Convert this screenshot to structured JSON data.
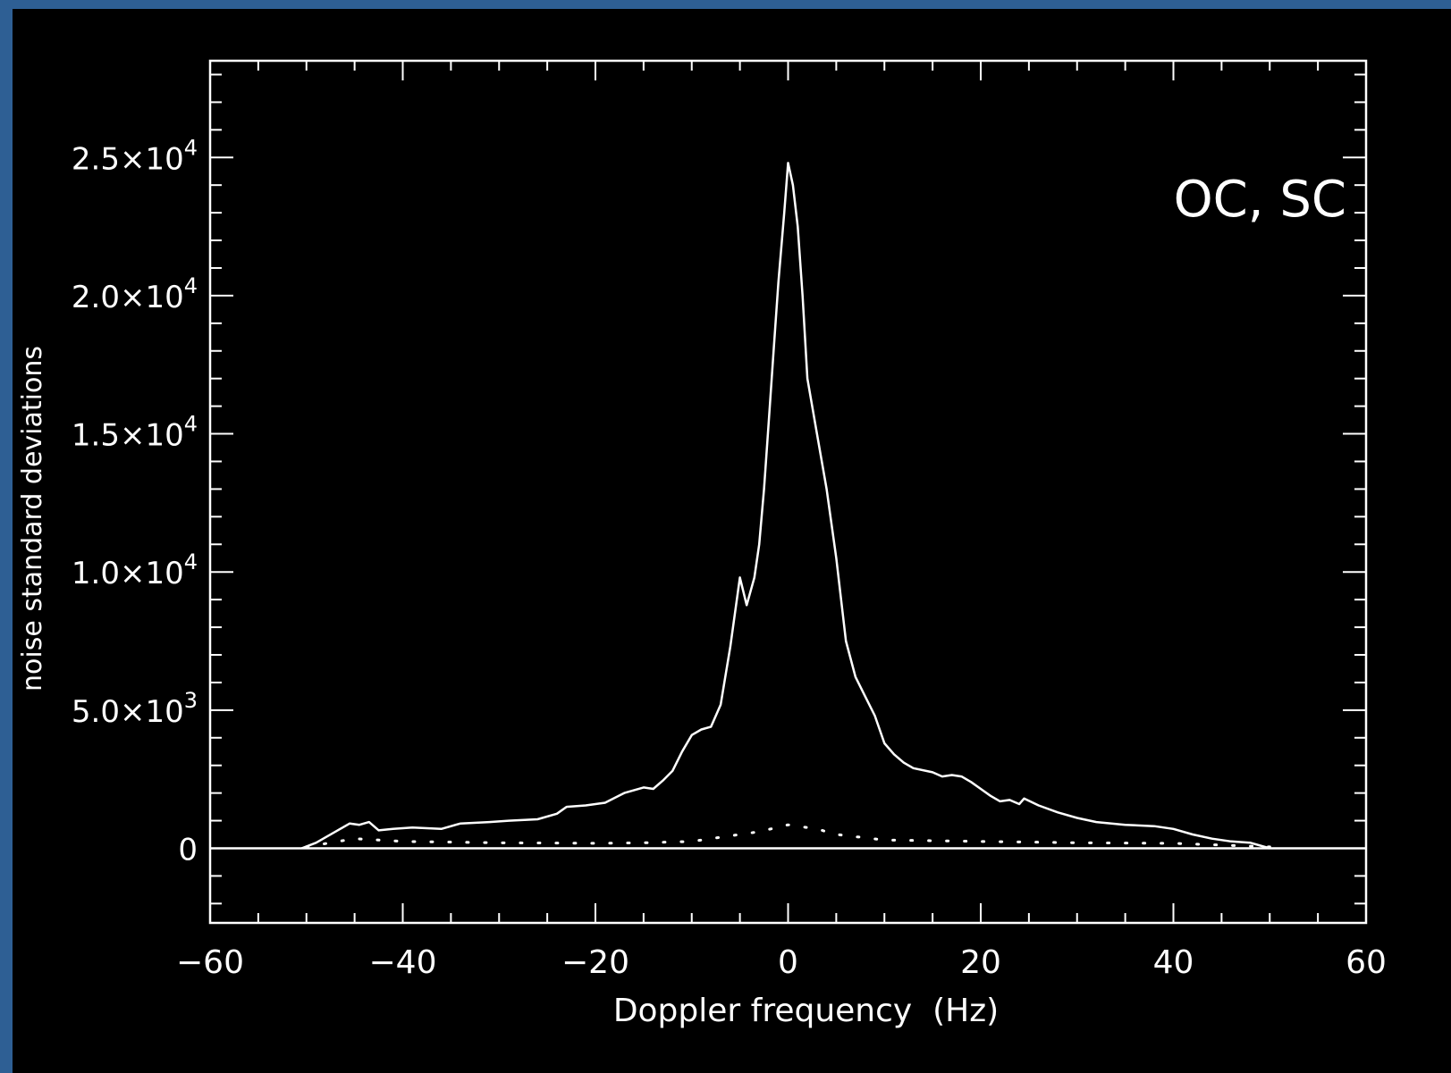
{
  "colors": {
    "background": "#000000",
    "foreground": "#ffffff",
    "border": "#2e5f94"
  },
  "chart_data": {
    "type": "line",
    "title": "",
    "annotation": "OC, SC",
    "xlabel": "Doppler frequency  (Hz)",
    "ylabel": "noise standard deviations",
    "xlim": [
      -60,
      60
    ],
    "ylim": [
      -2700,
      28500
    ],
    "grid": false,
    "legend": "none",
    "x_ticks": [
      {
        "value": -60,
        "label": "−60"
      },
      {
        "value": -40,
        "label": "−40"
      },
      {
        "value": -20,
        "label": "−20"
      },
      {
        "value": 0,
        "label": "0"
      },
      {
        "value": 20,
        "label": "20"
      },
      {
        "value": 40,
        "label": "40"
      },
      {
        "value": 60,
        "label": "60"
      }
    ],
    "y_ticks": [
      {
        "value": 0,
        "mant": "0",
        "exp": ""
      },
      {
        "value": 5000,
        "mant": "5.0×10",
        "exp": "3"
      },
      {
        "value": 10000,
        "mant": "1.0×10",
        "exp": "4"
      },
      {
        "value": 15000,
        "mant": "1.5×10",
        "exp": "4"
      },
      {
        "value": 20000,
        "mant": "2.0×10",
        "exp": "4"
      },
      {
        "value": 25000,
        "mant": "2.5×10",
        "exp": "4"
      }
    ],
    "reference_line_y": 0,
    "series": [
      {
        "style": "solid",
        "points": [
          [
            -50.5,
            0
          ],
          [
            -49,
            200
          ],
          [
            -47,
            600
          ],
          [
            -45.5,
            900
          ],
          [
            -44.5,
            850
          ],
          [
            -43.5,
            950
          ],
          [
            -42.5,
            650
          ],
          [
            -41,
            700
          ],
          [
            -39,
            750
          ],
          [
            -36,
            700
          ],
          [
            -34,
            900
          ],
          [
            -31,
            950
          ],
          [
            -29,
            1000
          ],
          [
            -26,
            1050
          ],
          [
            -24,
            1250
          ],
          [
            -23,
            1500
          ],
          [
            -21,
            1550
          ],
          [
            -19,
            1650
          ],
          [
            -17,
            2000
          ],
          [
            -15,
            2200
          ],
          [
            -14,
            2150
          ],
          [
            -13,
            2450
          ],
          [
            -12,
            2800
          ],
          [
            -11,
            3500
          ],
          [
            -10,
            4100
          ],
          [
            -9,
            4300
          ],
          [
            -8,
            4400
          ],
          [
            -7,
            5200
          ],
          [
            -6,
            7300
          ],
          [
            -5,
            9800
          ],
          [
            -4.3,
            8800
          ],
          [
            -3.5,
            9800
          ],
          [
            -3,
            11000
          ],
          [
            -2.5,
            13000
          ],
          [
            -2,
            15500
          ],
          [
            -1.5,
            18000
          ],
          [
            -1,
            20500
          ],
          [
            -0.4,
            23000
          ],
          [
            0,
            24800
          ],
          [
            0.5,
            24000
          ],
          [
            1,
            22500
          ],
          [
            1.5,
            20000
          ],
          [
            2,
            17000
          ],
          [
            3,
            15000
          ],
          [
            4,
            13000
          ],
          [
            5,
            10500
          ],
          [
            6,
            7500
          ],
          [
            7,
            6200
          ],
          [
            8,
            5500
          ],
          [
            9,
            4800
          ],
          [
            10,
            3800
          ],
          [
            11,
            3400
          ],
          [
            12,
            3100
          ],
          [
            13,
            2900
          ],
          [
            15,
            2750
          ],
          [
            16,
            2600
          ],
          [
            17,
            2650
          ],
          [
            18,
            2600
          ],
          [
            19,
            2400
          ],
          [
            20,
            2150
          ],
          [
            21,
            1900
          ],
          [
            22,
            1700
          ],
          [
            23,
            1750
          ],
          [
            24,
            1600
          ],
          [
            24.5,
            1800
          ],
          [
            26,
            1550
          ],
          [
            28,
            1300
          ],
          [
            30,
            1100
          ],
          [
            32,
            950
          ],
          [
            35,
            850
          ],
          [
            38,
            800
          ],
          [
            40,
            700
          ],
          [
            42,
            500
          ],
          [
            44,
            350
          ],
          [
            46,
            250
          ],
          [
            48,
            200
          ],
          [
            50,
            0
          ]
        ]
      },
      {
        "style": "dotted",
        "points": [
          [
            -50,
            50
          ],
          [
            -45,
            350
          ],
          [
            -40,
            250
          ],
          [
            -30,
            200
          ],
          [
            -20,
            180
          ],
          [
            -15,
            200
          ],
          [
            -10,
            250
          ],
          [
            -5,
            500
          ],
          [
            -3,
            600
          ],
          [
            0,
            850
          ],
          [
            3,
            700
          ],
          [
            5,
            500
          ],
          [
            10,
            300
          ],
          [
            20,
            250
          ],
          [
            30,
            200
          ],
          [
            40,
            180
          ],
          [
            50,
            50
          ]
        ]
      }
    ]
  }
}
